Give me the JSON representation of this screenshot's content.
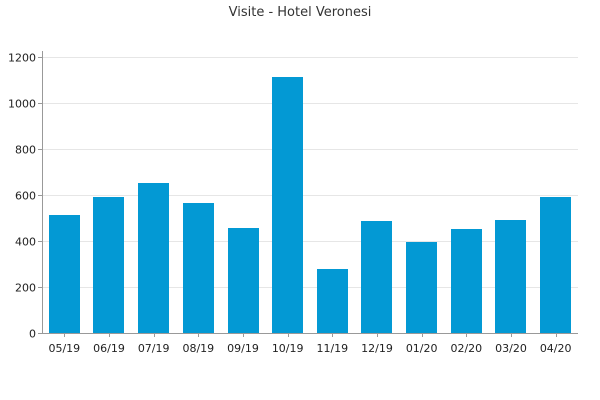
{
  "chart_data": {
    "type": "bar",
    "title": "Visite - Hotel Veronesi",
    "xlabel": "",
    "ylabel": "",
    "categories": [
      "05/19",
      "06/19",
      "07/19",
      "08/19",
      "09/19",
      "10/19",
      "11/19",
      "12/19",
      "01/20",
      "02/20",
      "03/20",
      "04/20"
    ],
    "values": [
      512,
      590,
      652,
      565,
      455,
      1112,
      278,
      485,
      395,
      452,
      490,
      590
    ],
    "ylim": [
      0,
      1200
    ],
    "yticks": [
      0,
      200,
      400,
      600,
      800,
      1000,
      1200
    ],
    "ytick_labels": [
      "0",
      "200",
      "400",
      "600",
      "800",
      "1000",
      "1200"
    ],
    "grid": true,
    "legend": "none",
    "colors": {
      "bar": "#0399d4",
      "grid": "#e6e6e6",
      "axis": "#999999",
      "text": "#222222"
    }
  }
}
